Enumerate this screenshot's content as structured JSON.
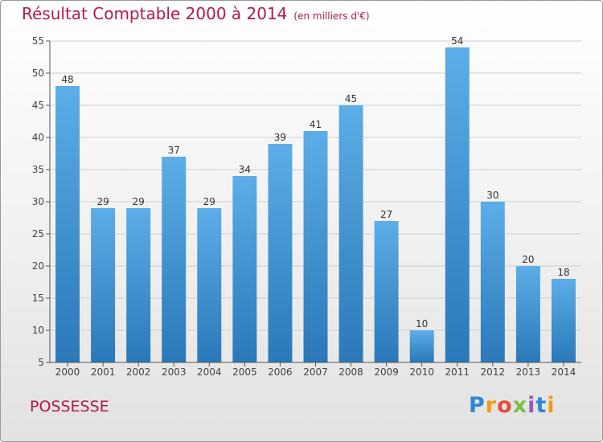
{
  "header": {
    "title": "Résultat Comptable 2000 à 2014",
    "unit": "(en milliers d'€)"
  },
  "footer": {
    "town": "POSSESSE",
    "logo": "Proxiti"
  },
  "colors": {
    "title": "#b5174f",
    "bar_top": "#5dade8",
    "bar_bottom": "#2a78b8",
    "grid": "#d0d0d0",
    "axis": "#555555"
  },
  "chart_data": {
    "type": "bar",
    "title": "Résultat Comptable 2000 à 2014",
    "subtitle": "(en milliers d'€)",
    "categories": [
      "2000",
      "2001",
      "2002",
      "2003",
      "2004",
      "2005",
      "2006",
      "2007",
      "2008",
      "2009",
      "2010",
      "2011",
      "2012",
      "2013",
      "2014"
    ],
    "values": [
      48,
      29,
      29,
      37,
      29,
      34,
      39,
      41,
      45,
      27,
      10,
      54,
      30,
      20,
      18
    ],
    "ylim": [
      5,
      55
    ],
    "yticks": [
      5,
      10,
      15,
      20,
      25,
      30,
      35,
      40,
      45,
      50,
      55
    ],
    "grid": true,
    "show_data_labels": true
  }
}
